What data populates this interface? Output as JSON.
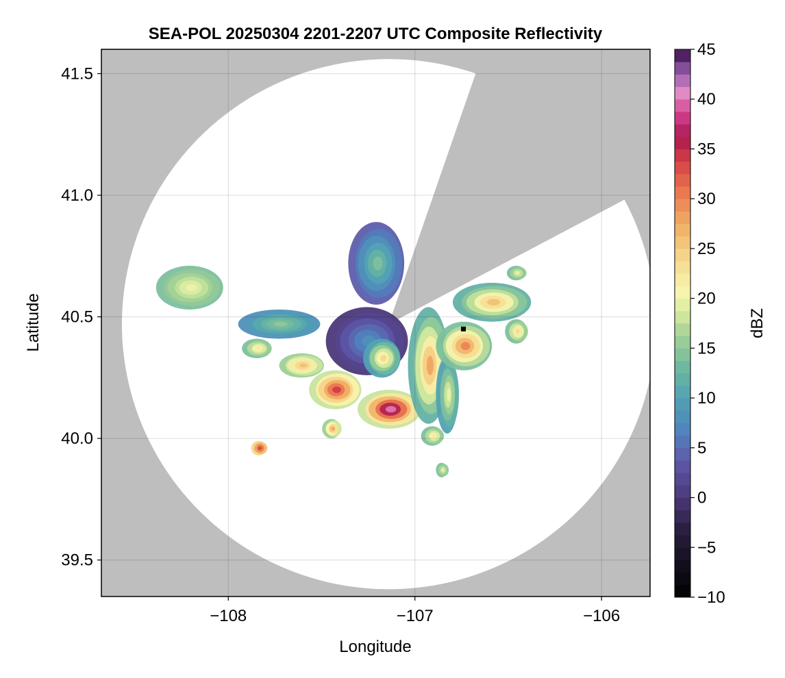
{
  "chart_data": {
    "type": "heatmap",
    "title": "SEA-POL 20250304 2201-2207 UTC Composite Reflectivity",
    "xlabel": "Longitude",
    "ylabel": "Latitude",
    "xlim": [
      -108.68,
      -105.74
    ],
    "ylim": [
      39.35,
      41.6
    ],
    "xticks": [
      -108,
      -107,
      -106
    ],
    "xtick_labels": [
      "−108",
      "−107",
      "−106"
    ],
    "yticks": [
      39.5,
      40.0,
      40.5,
      41.0,
      41.5
    ],
    "ytick_labels": [
      "39.5",
      "40.0",
      "40.5",
      "41.0",
      "41.5"
    ],
    "grid": true,
    "radar": {
      "center_lon": -107.14,
      "center_lat": 40.47,
      "max_range_deg_lon": 1.43,
      "max_range_deg_lat": 1.09,
      "blocked_sector_bearings_deg": [
        [
          19,
          62
        ]
      ],
      "station_marker": {
        "lon": -106.74,
        "lat": 40.45
      }
    },
    "colorbar": {
      "label": "dBZ",
      "min": -10,
      "max": 45,
      "ticks": [
        -10,
        -5,
        0,
        5,
        10,
        15,
        20,
        25,
        30,
        35,
        40,
        45
      ],
      "tick_labels": [
        "−10",
        "−5",
        "0",
        "5",
        "10",
        "15",
        "20",
        "25",
        "30",
        "35",
        "40",
        "45"
      ],
      "colormap": "spectral-reversed"
    },
    "echo_regions": [
      {
        "name": "northwest-light-band",
        "lon": -108.2,
        "lat": 40.62,
        "rx": 0.18,
        "ry": 0.09,
        "peak_dbz": 20,
        "base_dbz": 14
      },
      {
        "name": "west-line-upper",
        "lon": -107.72,
        "lat": 40.47,
        "rx": 0.22,
        "ry": 0.06,
        "peak_dbz": 15,
        "base_dbz": 8
      },
      {
        "name": "west-cell-small",
        "lon": -107.84,
        "lat": 40.37,
        "rx": 0.08,
        "ry": 0.04,
        "peak_dbz": 22,
        "base_dbz": 14
      },
      {
        "name": "west-cell-orange",
        "lon": -107.6,
        "lat": 40.3,
        "rx": 0.12,
        "ry": 0.05,
        "peak_dbz": 26,
        "base_dbz": 16
      },
      {
        "name": "southwest-strong-cell",
        "lon": -107.42,
        "lat": 40.2,
        "rx": 0.14,
        "ry": 0.08,
        "peak_dbz": 34,
        "base_dbz": 18
      },
      {
        "name": "core-blue-region",
        "lon": -107.25,
        "lat": 40.4,
        "rx": 0.22,
        "ry": 0.14,
        "peak_dbz": 8,
        "base_dbz": 0
      },
      {
        "name": "core-embedded-warm",
        "lon": -107.17,
        "lat": 40.33,
        "rx": 0.1,
        "ry": 0.08,
        "peak_dbz": 24,
        "base_dbz": 10
      },
      {
        "name": "south-strong-cell",
        "lon": -107.13,
        "lat": 40.12,
        "rx": 0.17,
        "ry": 0.08,
        "peak_dbz": 40,
        "base_dbz": 18
      },
      {
        "name": "north-band",
        "lon": -107.2,
        "lat": 40.72,
        "rx": 0.15,
        "ry": 0.17,
        "peak_dbz": 14,
        "base_dbz": 4
      },
      {
        "name": "east-line-1",
        "lon": -106.92,
        "lat": 40.3,
        "rx": 0.11,
        "ry": 0.24,
        "peak_dbz": 28,
        "base_dbz": 12
      },
      {
        "name": "east-line-2",
        "lon": -106.82,
        "lat": 40.18,
        "rx": 0.06,
        "ry": 0.16,
        "peak_dbz": 20,
        "base_dbz": 10
      },
      {
        "name": "east-cluster",
        "lon": -106.73,
        "lat": 40.38,
        "rx": 0.15,
        "ry": 0.1,
        "peak_dbz": 30,
        "base_dbz": 14
      },
      {
        "name": "northeast-cells",
        "lon": -106.58,
        "lat": 40.56,
        "rx": 0.21,
        "ry": 0.08,
        "peak_dbz": 26,
        "base_dbz": 12
      },
      {
        "name": "far-east-cell",
        "lon": -106.45,
        "lat": 40.44,
        "rx": 0.06,
        "ry": 0.05,
        "peak_dbz": 24,
        "base_dbz": 14
      },
      {
        "name": "south-small-1",
        "lon": -107.44,
        "lat": 40.04,
        "rx": 0.05,
        "ry": 0.04,
        "peak_dbz": 28,
        "base_dbz": 16
      },
      {
        "name": "southwest-dot",
        "lon": -107.83,
        "lat": 39.96,
        "rx": 0.04,
        "ry": 0.03,
        "peak_dbz": 34,
        "base_dbz": 24
      },
      {
        "name": "south-small-2",
        "lon": -106.9,
        "lat": 40.01,
        "rx": 0.06,
        "ry": 0.04,
        "peak_dbz": 22,
        "base_dbz": 14
      },
      {
        "name": "south-small-3",
        "lon": -106.85,
        "lat": 39.87,
        "rx": 0.03,
        "ry": 0.03,
        "peak_dbz": 20,
        "base_dbz": 14
      },
      {
        "name": "far-northeast-dots",
        "lon": -106.45,
        "lat": 40.68,
        "rx": 0.05,
        "ry": 0.03,
        "peak_dbz": 20,
        "base_dbz": 14
      }
    ]
  }
}
